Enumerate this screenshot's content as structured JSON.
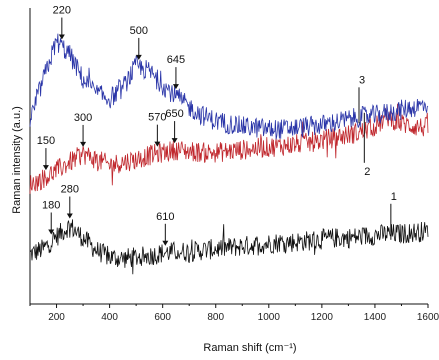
{
  "chart_data": {
    "type": "line",
    "title": "",
    "xlabel": "Raman shift (cm⁻¹)",
    "ylabel": "Raman intensity (a.u.)",
    "xlim": [
      100,
      1600
    ],
    "xticks": [
      "200",
      "400",
      "600",
      "800",
      "1000",
      "1200",
      "1400",
      "1600"
    ],
    "grid": false,
    "legend": "none",
    "series": [
      {
        "label": "1",
        "color": "#111111",
        "label_at": 1460,
        "x": [
          100,
          150,
          200,
          250,
          300,
          350,
          400,
          450,
          500,
          550,
          600,
          650,
          700,
          750,
          800,
          850,
          900,
          950,
          1000,
          1050,
          1100,
          1150,
          1200,
          1250,
          1300,
          1350,
          1400,
          1450,
          1500,
          1550,
          1600
        ],
        "y": [
          1.1,
          1.5,
          2.4,
          3.2,
          2.3,
          1.4,
          0.9,
          0.8,
          0.9,
          1.0,
          1.2,
          1.3,
          1.3,
          1.4,
          1.5,
          1.6,
          1.7,
          1.8,
          1.9,
          2.0,
          2.0,
          2.1,
          2.2,
          2.3,
          2.3,
          2.4,
          2.5,
          2.6,
          2.6,
          2.7,
          2.8
        ],
        "annotations": [
          {
            "x": 180,
            "text": "180"
          },
          {
            "x": 250,
            "text": "280"
          },
          {
            "x": 610,
            "text": "610"
          }
        ]
      },
      {
        "label": "2",
        "color": "#c0272d",
        "label_at": 1360,
        "x": [
          100,
          150,
          200,
          250,
          300,
          350,
          400,
          450,
          500,
          550,
          600,
          650,
          700,
          750,
          800,
          850,
          900,
          950,
          1000,
          1050,
          1100,
          1150,
          1200,
          1250,
          1300,
          1350,
          1400,
          1450,
          1500,
          1550,
          1600
        ],
        "y": [
          6.2,
          6.6,
          7.2,
          7.8,
          8.4,
          8.0,
          7.6,
          7.8,
          8.0,
          8.3,
          8.5,
          8.7,
          8.6,
          8.5,
          8.5,
          8.6,
          8.7,
          8.8,
          8.9,
          9.0,
          9.1,
          9.2,
          9.4,
          9.6,
          9.8,
          10.0,
          10.4,
          11.1,
          10.6,
          10.4,
          10.3
        ],
        "annotations": [
          {
            "x": 160,
            "text": "150"
          },
          {
            "x": 300,
            "text": "300"
          },
          {
            "x": 580,
            "text": "570"
          },
          {
            "x": 645,
            "text": "650"
          }
        ]
      },
      {
        "label": "3",
        "color": "#2a35a8",
        "label_at": 1340,
        "x": [
          100,
          150,
          200,
          250,
          300,
          350,
          400,
          450,
          500,
          550,
          600,
          650,
          700,
          750,
          800,
          850,
          900,
          950,
          1000,
          1050,
          1100,
          1150,
          1200,
          1250,
          1300,
          1350,
          1400,
          1450,
          1500,
          1550,
          1600
        ],
        "y": [
          10.8,
          13.8,
          16.6,
          15.6,
          13.8,
          12.8,
          12.4,
          13.2,
          14.8,
          14.4,
          13.4,
          12.6,
          11.8,
          11.2,
          10.8,
          10.6,
          10.4,
          10.3,
          10.2,
          10.2,
          10.3,
          10.4,
          10.5,
          10.7,
          10.9,
          11.1,
          11.2,
          11.4,
          11.6,
          11.8,
          12.0
        ],
        "annotations": [
          {
            "x": 220,
            "text": "220"
          },
          {
            "x": 510,
            "text": "500"
          },
          {
            "x": 650,
            "text": "645"
          }
        ]
      }
    ]
  }
}
